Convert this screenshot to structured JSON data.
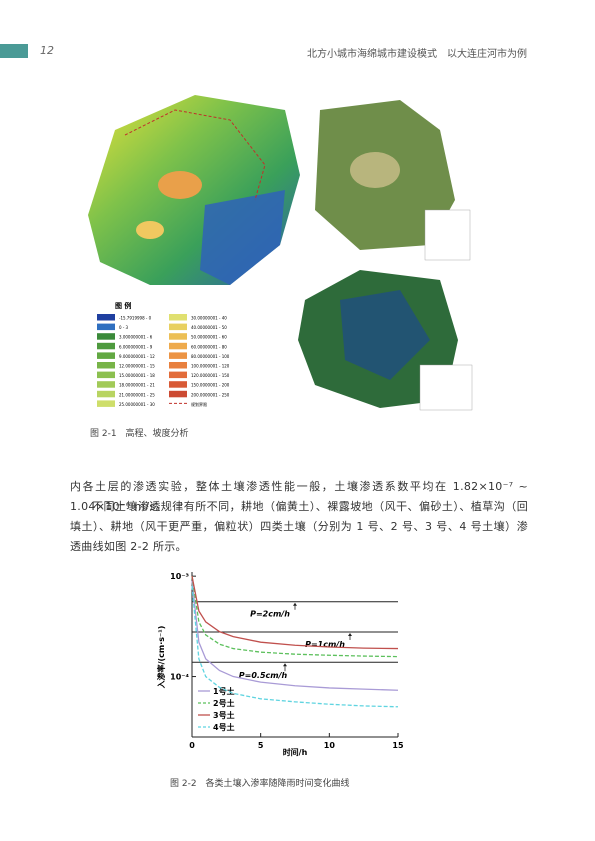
{
  "header": {
    "page_number": "12",
    "title": "北方小城市海绵城市建设模式　以大连庄河市为例"
  },
  "figure_2_1": {
    "caption": "图 2-1　高程、坡度分析",
    "legend_title": "图 例",
    "legend_items": [
      "-15.7919998 - 0",
      "0 - 3",
      "3.000000001 - 6",
      "6.000000001 - 9",
      "9.000000001 - 12",
      "12.00000001 - 15",
      "15.00000001 - 18",
      "18.00000001 - 21",
      "21.00000001 - 25",
      "25.00000001 - 30",
      "30.00000001 - 40",
      "40.00000001 - 50",
      "50.00000001 - 60",
      "60.00000001 - 80",
      "80.00000001 - 100",
      "100.0000001 - 120",
      "120.0000001 - 150",
      "150.0000001 - 200",
      "200.0000001 - 250",
      "规划界限"
    ]
  },
  "body": {
    "paragraphs": [
      "内各土层的渗透实验，整体土壤渗透性能一般，土壤渗透系数平均在 1.82×10⁻⁷ ~ 1.04×10⁻⁶ m/s。",
      "不同土壤渗透规律有所不同，耕地（偏黄土）、裸露坡地（风干、偏砂土）、植草沟（回填土）、耕地（风干更严重，偏粒状）四类土壤（分别为 1 号、2 号、3 号、4 号土壤）渗透曲线如图 2-2 所示。"
    ]
  },
  "figure_2_2": {
    "caption": "图 2-2　各类土壤入渗率随降雨时间变化曲线",
    "chart": {
      "type": "line",
      "xlabel": "时间/h",
      "ylabel": "入渗率/(cm·s⁻¹)",
      "log_y": true,
      "x": [
        0,
        0.5,
        1,
        2,
        3,
        5,
        7.5,
        10,
        12.5,
        15
      ],
      "xlim": [
        0,
        15
      ],
      "xticks": [
        0,
        5,
        10,
        15
      ],
      "ylim": [
        2.5e-05,
        0.0011
      ],
      "yticks": [
        {
          "value": 0.001,
          "label": "10⁻³"
        },
        {
          "value": 0.0001,
          "label": "10⁻⁴"
        }
      ],
      "series": [
        {
          "name": "1号土",
          "color": "#a99bd6",
          "dashed": false,
          "values": [
            0.0009,
            0.00022,
            0.00015,
            0.000115,
            0.0001,
            8.8e-05,
            8.1e-05,
            7.7e-05,
            7.5e-05,
            7.3e-05
          ]
        },
        {
          "name": "2号土",
          "color": "#5cc05c",
          "dashed": true,
          "values": [
            0.001,
            0.00035,
            0.00026,
            0.00021,
            0.00019,
            0.000175,
            0.000167,
            0.000163,
            0.00016,
            0.000158
          ]
        },
        {
          "name": "3号土",
          "color": "#c0504d",
          "dashed": false,
          "values": [
            0.001,
            0.00045,
            0.00035,
            0.00028,
            0.00025,
            0.00022,
            0.000205,
            0.000197,
            0.000192,
            0.00019
          ]
        },
        {
          "name": "4号土",
          "color": "#5fd4e0",
          "dashed": true,
          "values": [
            0.0008,
            0.00015,
            0.0001,
            7.8e-05,
            6.8e-05,
            6e-05,
            5.6e-05,
            5.3e-05,
            5.1e-05,
            5e-05
          ]
        }
      ],
      "reference_lines": [
        {
          "label": "P=2cm/h",
          "value": 0.000556
        },
        {
          "label": "P=1cm/h",
          "value": 0.000278
        },
        {
          "label": "P=0.5cm/h",
          "value": 0.000139
        }
      ]
    }
  }
}
